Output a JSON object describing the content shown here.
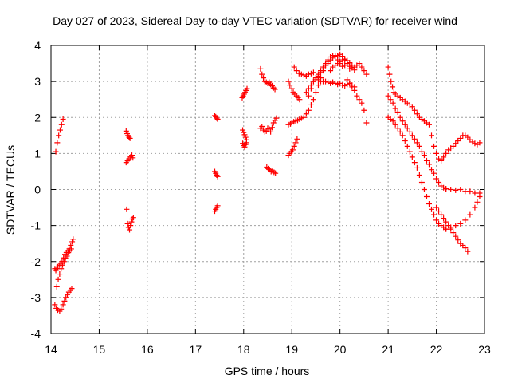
{
  "chart_data": {
    "type": "scatter",
    "title": "Day 027 of 2023, Sidereal Day-to-day VTEC variation (SDTVAR) for receiver wind",
    "xlabel": "GPS time / hours",
    "ylabel": "SDTVAR / TECUs",
    "xlim": [
      14,
      23
    ],
    "ylim": [
      -4,
      4
    ],
    "x_ticks": [
      14,
      15,
      16,
      17,
      18,
      19,
      20,
      21,
      22,
      23
    ],
    "y_ticks": [
      -4,
      -3,
      -2,
      -1,
      0,
      1,
      2,
      3,
      4
    ],
    "grid": true,
    "marker": "+",
    "color": "#ff0000",
    "segments": [
      {
        "x": [
          14.1,
          14.13,
          14.16,
          14.19,
          14.22,
          14.25
        ],
        "y": [
          1.05,
          1.3,
          1.5,
          1.65,
          1.8,
          1.95
        ]
      },
      {
        "x": [
          14.08,
          14.1,
          14.12,
          14.14,
          14.17,
          14.2,
          14.23,
          14.26,
          14.29,
          14.32,
          14.35,
          14.38,
          14.41,
          14.44,
          14.46
        ],
        "y": [
          -2.2,
          -2.25,
          -2.2,
          -2.15,
          -2.1,
          -2.05,
          -2.0,
          -1.9,
          -1.8,
          -1.75,
          -1.7,
          -1.65,
          -1.55,
          -1.45,
          -1.38
        ]
      },
      {
        "x": [
          14.12,
          14.15,
          14.18,
          14.21,
          14.24,
          14.27,
          14.3,
          14.33,
          14.36,
          14.39,
          14.42
        ],
        "y": [
          -2.7,
          -2.5,
          -2.35,
          -2.2,
          -2.1,
          -2.0,
          -1.9,
          -1.85,
          -1.75,
          -1.7,
          -1.65
        ]
      },
      {
        "x": [
          14.08,
          14.11,
          14.14,
          14.18,
          14.21,
          14.25,
          14.28,
          14.31,
          14.34,
          14.37,
          14.4,
          14.43
        ],
        "y": [
          -3.2,
          -3.3,
          -3.35,
          -3.38,
          -3.32,
          -3.2,
          -3.1,
          -3.0,
          -2.92,
          -2.85,
          -2.8,
          -2.75
        ]
      },
      {
        "x": [
          15.56,
          15.58,
          15.6,
          15.62,
          15.64
        ],
        "y": [
          1.62,
          1.55,
          1.5,
          1.45,
          1.42
        ]
      },
      {
        "x": [
          15.56,
          15.59,
          15.62,
          15.65,
          15.68,
          15.7
        ],
        "y": [
          0.75,
          0.8,
          0.85,
          0.9,
          0.95,
          0.88
        ]
      },
      {
        "x": [
          15.57,
          15.59,
          15.61,
          15.63,
          15.65,
          15.67,
          15.69,
          15.71
        ],
        "y": [
          -0.55,
          -0.95,
          -1.05,
          -1.12,
          -1.0,
          -0.9,
          -0.82,
          -0.78
        ]
      },
      {
        "x": [
          17.4,
          17.42,
          17.44,
          17.46
        ],
        "y": [
          2.05,
          2.02,
          1.98,
          1.95
        ]
      },
      {
        "x": [
          17.4,
          17.42,
          17.44,
          17.46
        ],
        "y": [
          0.5,
          0.45,
          0.4,
          0.36
        ]
      },
      {
        "x": [
          17.4,
          17.42,
          17.44,
          17.46
        ],
        "y": [
          -0.6,
          -0.55,
          -0.5,
          -0.45
        ]
      },
      {
        "x": [
          17.97,
          17.99,
          18.01,
          18.03,
          18.05,
          18.07
        ],
        "y": [
          2.55,
          2.6,
          2.65,
          2.7,
          2.75,
          2.8
        ]
      },
      {
        "x": [
          17.98,
          18.0,
          18.02,
          18.04,
          18.06
        ],
        "y": [
          1.65,
          1.58,
          1.52,
          1.45,
          1.38
        ]
      },
      {
        "x": [
          17.98,
          18.0,
          18.02,
          18.04,
          18.06
        ],
        "y": [
          1.28,
          1.22,
          1.18,
          1.25,
          1.3
        ]
      },
      {
        "x": [
          18.35,
          18.38,
          18.41,
          18.44,
          18.47,
          18.5,
          18.53,
          18.56,
          18.59,
          18.62,
          18.65
        ],
        "y": [
          3.35,
          3.2,
          3.1,
          3.0,
          2.98,
          2.95,
          2.98,
          2.92,
          2.88,
          2.82,
          2.78
        ]
      },
      {
        "x": [
          18.35,
          18.38,
          18.41,
          18.44,
          18.47,
          18.5,
          18.53,
          18.56,
          18.59,
          18.62,
          18.65,
          18.68
        ],
        "y": [
          1.7,
          1.75,
          1.65,
          1.6,
          1.62,
          1.7,
          1.68,
          1.6,
          1.72,
          1.85,
          1.92,
          1.98
        ]
      },
      {
        "x": [
          18.48,
          18.51,
          18.54,
          18.57,
          18.6,
          18.63,
          18.66
        ],
        "y": [
          0.62,
          0.58,
          0.55,
          0.5,
          0.52,
          0.48,
          0.45
        ]
      },
      {
        "x": [
          18.93,
          18.96,
          18.99,
          19.02,
          19.05,
          19.08,
          19.11
        ],
        "y": [
          0.95,
          1.0,
          1.05,
          1.1,
          1.2,
          1.3,
          1.4
        ]
      },
      {
        "x": [
          18.93,
          18.96,
          19.0,
          19.03,
          19.06,
          19.1,
          19.13,
          19.16
        ],
        "y": [
          3.0,
          2.9,
          2.8,
          2.7,
          2.65,
          2.6,
          2.55,
          2.5
        ]
      },
      {
        "x": [
          18.93,
          18.97,
          19.0,
          19.04,
          19.08,
          19.12,
          19.16,
          19.2,
          19.25,
          19.3,
          19.35,
          19.4,
          19.45,
          19.5,
          19.55,
          19.6,
          19.65,
          19.7,
          19.75,
          19.8
        ],
        "y": [
          1.8,
          1.82,
          1.85,
          1.88,
          1.9,
          1.92,
          1.95,
          1.98,
          2.0,
          2.1,
          2.2,
          2.35,
          2.5,
          2.7,
          2.9,
          3.1,
          3.3,
          3.45,
          3.55,
          3.6
        ]
      },
      {
        "x": [
          19.05,
          19.1,
          19.15,
          19.2,
          19.25,
          19.3,
          19.35,
          19.4,
          19.45
        ],
        "y": [
          3.4,
          3.3,
          3.22,
          3.2,
          3.18,
          3.15,
          3.2,
          3.22,
          3.25
        ]
      },
      {
        "x": [
          19.3,
          19.35,
          19.4,
          19.45,
          19.5,
          19.55,
          19.6,
          19.65,
          19.7,
          19.75,
          19.8,
          19.85,
          19.9,
          19.95,
          20.0,
          20.05,
          20.1,
          20.15,
          20.2
        ],
        "y": [
          2.7,
          2.8,
          2.9,
          3.0,
          3.1,
          3.2,
          3.3,
          3.35,
          3.45,
          3.5,
          3.6,
          3.65,
          3.7,
          3.72,
          3.75,
          3.7,
          3.6,
          3.5,
          3.35
        ]
      },
      {
        "x": [
          19.35,
          19.4,
          19.45,
          19.5,
          19.55,
          19.6,
          19.65,
          19.7,
          19.75,
          19.8,
          19.85,
          19.9,
          19.95,
          20.0,
          20.05,
          20.1,
          20.15,
          20.2,
          20.25,
          20.3
        ],
        "y": [
          2.6,
          2.8,
          3.0,
          3.1,
          3.15,
          3.25,
          3.4,
          3.5,
          3.6,
          3.68,
          3.72,
          3.7,
          3.6,
          3.5,
          3.42,
          3.45,
          3.5,
          3.42,
          3.38,
          3.32
        ]
      },
      {
        "x": [
          19.5,
          19.55,
          19.6,
          19.65,
          19.7,
          19.75,
          19.8,
          19.85,
          19.9,
          19.95,
          20.0,
          20.05,
          20.1,
          20.15,
          20.2,
          20.25,
          20.3
        ],
        "y": [
          3.05,
          3.05,
          3.0,
          3.0,
          3.0,
          2.98,
          2.95,
          2.98,
          2.95,
          2.92,
          2.95,
          2.9,
          2.88,
          2.92,
          2.95,
          2.9,
          2.85
        ]
      },
      {
        "x": [
          19.8,
          19.85,
          19.9,
          19.95,
          20.0,
          20.05,
          20.1,
          20.15,
          20.2,
          20.25,
          20.3,
          20.35,
          20.4,
          20.45,
          20.5,
          20.55
        ],
        "y": [
          3.3,
          3.4,
          3.45,
          3.5,
          3.55,
          3.6,
          3.62,
          3.58,
          3.52,
          3.45,
          3.4,
          3.45,
          3.5,
          3.4,
          3.3,
          3.2
        ]
      },
      {
        "x": [
          20.15,
          20.2,
          20.25,
          20.3,
          20.35,
          20.4,
          20.45,
          20.5,
          20.55
        ],
        "y": [
          3.05,
          2.95,
          2.85,
          2.75,
          2.6,
          2.5,
          2.4,
          2.2,
          1.85
        ]
      },
      {
        "x": [
          21.0,
          21.03,
          21.06,
          21.09,
          21.12,
          21.15,
          21.2,
          21.25,
          21.3,
          21.35,
          21.4,
          21.45,
          21.5,
          21.55,
          21.6,
          21.65,
          21.7,
          21.75,
          21.8,
          21.85,
          21.9,
          21.95,
          22.0,
          22.05,
          22.1
        ],
        "y": [
          3.4,
          3.2,
          3.0,
          2.85,
          2.7,
          2.65,
          2.6,
          2.55,
          2.5,
          2.45,
          2.4,
          2.35,
          2.3,
          2.2,
          2.1,
          2.0,
          1.95,
          1.9,
          1.85,
          1.8,
          1.5,
          1.2,
          1.0,
          0.85,
          0.8
        ]
      },
      {
        "x": [
          22.1,
          22.15,
          22.2,
          22.25,
          22.3,
          22.35,
          22.4,
          22.45,
          22.5,
          22.55,
          22.6,
          22.65,
          22.7,
          22.75,
          22.8,
          22.85,
          22.9
        ],
        "y": [
          0.85,
          0.9,
          1.0,
          1.1,
          1.15,
          1.2,
          1.28,
          1.35,
          1.42,
          1.5,
          1.5,
          1.45,
          1.38,
          1.32,
          1.28,
          1.25,
          1.3
        ]
      },
      {
        "x": [
          21.0,
          21.05,
          21.1,
          21.15,
          21.2,
          21.25,
          21.3,
          21.35,
          21.4,
          21.45,
          21.5,
          21.55,
          21.6,
          21.65,
          21.7,
          21.75,
          21.8,
          21.85,
          21.9,
          21.95,
          22.0,
          22.05,
          22.1,
          22.15,
          22.2
        ],
        "y": [
          2.6,
          2.5,
          2.4,
          2.25,
          2.15,
          2.0,
          1.9,
          1.8,
          1.7,
          1.6,
          1.5,
          1.4,
          1.3,
          1.2,
          1.05,
          0.95,
          0.8,
          0.7,
          0.55,
          0.45,
          0.3,
          0.2,
          0.1,
          0.05,
          0.02
        ]
      },
      {
        "x": [
          22.2,
          22.3,
          22.4,
          22.5,
          22.6,
          22.7,
          22.8,
          22.9
        ],
        "y": [
          0.02,
          0.0,
          -0.02,
          0.0,
          -0.05,
          -0.05,
          -0.1,
          -0.1
        ]
      },
      {
        "x": [
          21.0,
          21.05,
          21.1,
          21.15,
          21.2,
          21.25,
          21.3,
          21.35,
          21.4,
          21.45,
          21.5,
          21.55,
          21.6,
          21.65,
          21.7,
          21.75,
          21.8,
          21.85,
          21.9,
          21.95,
          22.0,
          22.05,
          22.1,
          22.15,
          22.2
        ],
        "y": [
          2.0,
          1.95,
          1.9,
          1.8,
          1.7,
          1.6,
          1.5,
          1.35,
          1.2,
          1.05,
          0.9,
          0.75,
          0.6,
          0.4,
          0.2,
          0.0,
          -0.2,
          -0.4,
          -0.55,
          -0.7,
          -0.85,
          -0.95,
          -1.0,
          -1.05,
          -1.1
        ]
      },
      {
        "x": [
          22.0,
          22.05,
          22.1,
          22.15,
          22.2,
          22.25,
          22.3,
          22.35,
          22.4,
          22.45,
          22.5,
          22.55,
          22.6,
          22.65
        ],
        "y": [
          -0.5,
          -0.6,
          -0.7,
          -0.8,
          -0.9,
          -1.0,
          -1.1,
          -1.2,
          -1.3,
          -1.4,
          -1.5,
          -1.55,
          -1.62,
          -1.72
        ]
      },
      {
        "x": [
          22.2,
          22.3,
          22.4,
          22.5,
          22.6,
          22.7,
          22.8,
          22.85,
          22.9
        ],
        "y": [
          -1.1,
          -1.05,
          -1.0,
          -0.95,
          -0.85,
          -0.7,
          -0.5,
          -0.35,
          -0.2
        ]
      }
    ]
  }
}
